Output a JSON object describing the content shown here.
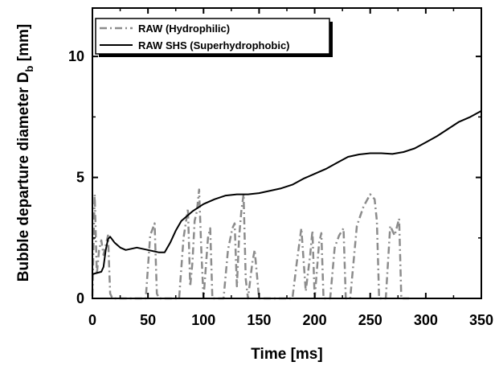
{
  "chart_data": {
    "type": "line",
    "xlabel": "Time [ms]",
    "ylabel_main": "Bubble departure diameter D",
    "ylabel_sub": "b",
    "ylabel_unit": " [mm]",
    "xlim": [
      0,
      350
    ],
    "ylim": [
      0,
      12
    ],
    "xticks": [
      0,
      50,
      100,
      150,
      200,
      250,
      300,
      350
    ],
    "yticks": [
      0,
      5,
      10
    ],
    "grid": false,
    "legend_position": "top-left",
    "series": [
      {
        "name": "RAW (Hydrophilic)",
        "style": "dash-dot",
        "color": "#8c8c8c",
        "x": [
          0,
          2,
          4,
          6,
          8,
          10,
          12,
          14,
          16,
          18,
          30,
          40,
          48,
          52,
          56,
          58,
          60,
          70,
          78,
          82,
          86,
          88,
          90,
          92,
          94,
          96,
          98,
          100,
          104,
          106,
          108,
          112,
          118,
          122,
          126,
          128,
          130,
          132,
          134,
          136,
          138,
          140,
          144,
          146,
          148,
          150,
          160,
          170,
          180,
          184,
          188,
          192,
          196,
          198,
          200,
          204,
          206,
          208,
          214,
          218,
          222,
          226,
          228,
          232,
          238,
          244,
          250,
          254,
          256,
          258,
          264,
          268,
          272,
          276,
          278,
          285
        ],
        "y": [
          0.1,
          4.3,
          1.0,
          2.0,
          2.4,
          1.8,
          2.2,
          2.6,
          0.2,
          0.0,
          0.0,
          0.0,
          0.0,
          2.6,
          3.1,
          0.2,
          0.0,
          0.0,
          0.0,
          2.5,
          3.7,
          0.5,
          1.5,
          3.2,
          3.6,
          4.5,
          2.0,
          0.0,
          2.5,
          2.9,
          0.0,
          0.0,
          0.0,
          2.0,
          2.9,
          3.1,
          0.5,
          2.5,
          3.6,
          4.3,
          0.8,
          0.0,
          1.5,
          2.0,
          1.0,
          0.0,
          0.0,
          0.0,
          0.0,
          1.5,
          2.9,
          0.3,
          1.8,
          2.8,
          0.0,
          2.3,
          2.7,
          0.0,
          0.0,
          2.1,
          2.6,
          2.9,
          0.0,
          0.0,
          3.0,
          3.8,
          4.3,
          4.1,
          3.2,
          0.0,
          0.0,
          3.0,
          2.6,
          3.3,
          0.0,
          0.0
        ]
      },
      {
        "name": "RAW SHS (Superhydrophobic)",
        "style": "solid",
        "color": "#000000",
        "x": [
          0,
          4,
          8,
          10,
          12,
          14,
          16,
          20,
          25,
          30,
          35,
          40,
          50,
          60,
          65,
          70,
          75,
          80,
          90,
          100,
          110,
          120,
          130,
          140,
          150,
          160,
          170,
          180,
          190,
          200,
          210,
          220,
          230,
          240,
          250,
          260,
          270,
          280,
          290,
          300,
          310,
          320,
          330,
          340,
          350
        ],
        "y": [
          1.0,
          1.05,
          1.1,
          1.3,
          2.0,
          2.45,
          2.55,
          2.3,
          2.1,
          2.0,
          2.05,
          2.1,
          2.0,
          1.9,
          1.9,
          2.3,
          2.8,
          3.2,
          3.6,
          3.9,
          4.1,
          4.25,
          4.3,
          4.3,
          4.35,
          4.45,
          4.55,
          4.7,
          4.95,
          5.15,
          5.35,
          5.6,
          5.85,
          5.95,
          6.0,
          6.0,
          5.97,
          6.05,
          6.2,
          6.45,
          6.7,
          7.0,
          7.3,
          7.5,
          7.75
        ]
      }
    ]
  }
}
